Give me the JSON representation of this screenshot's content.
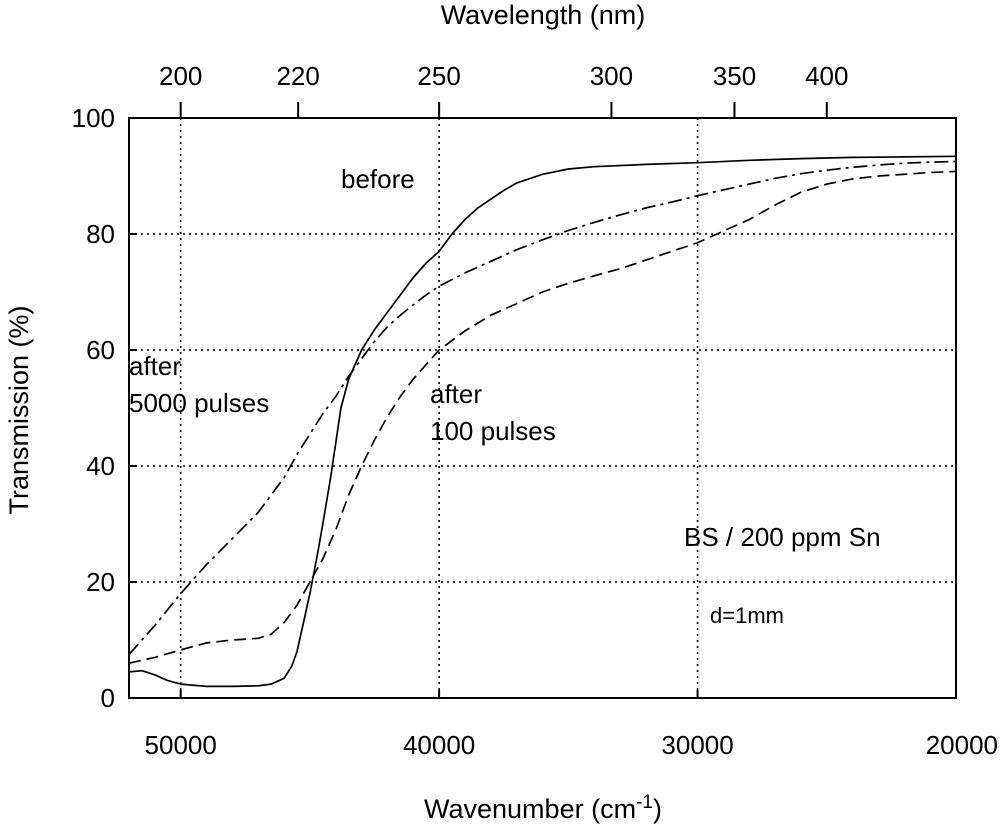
{
  "chart_data": {
    "type": "line",
    "xlabel": "Wavenumber (cm-1)",
    "xlabel_main": "Wavenumber (cm",
    "xlabel_sup": "-1",
    "xlabel_close": ")",
    "ylabel": "Transmission (%)",
    "top_axis_label": "Wavelength (nm)",
    "xlim": [
      52000,
      20000
    ],
    "ylim": [
      0,
      100
    ],
    "x_ticks": [
      50000,
      40000,
      30000,
      20000
    ],
    "x_tick_labels": [
      "50000",
      "40000",
      "30000",
      "20000"
    ],
    "y_ticks": [
      0,
      20,
      40,
      60,
      80,
      100
    ],
    "y_tick_labels": [
      "0",
      "20",
      "40",
      "60",
      "80",
      "100"
    ],
    "top_ticks": [
      200,
      220,
      250,
      300,
      350,
      400
    ],
    "top_tick_labels": [
      "200",
      "220",
      "250",
      "300",
      "350",
      "400"
    ],
    "grid": "dotted at major ticks",
    "annotations": {
      "before": "before",
      "after_5000_line1": "after",
      "after_5000_line2": "5000 pulses",
      "after_100_line1": "after",
      "after_100_line2": "100 pulses",
      "sample": "BS / 200 ppm Sn",
      "thickness": "d=1mm"
    },
    "series": [
      {
        "name": "before",
        "style": "solid",
        "x": [
          52000,
          51500,
          51000,
          50500,
          50000,
          49000,
          48000,
          47000,
          46500,
          46000,
          45700,
          45500,
          45300,
          45000,
          44700,
          44500,
          44200,
          44000,
          43800,
          43500,
          43000,
          42500,
          42000,
          41500,
          41000,
          40500,
          40000,
          39500,
          39000,
          38500,
          38000,
          37500,
          37000,
          36000,
          35000,
          34000,
          32000,
          30000,
          28000,
          26000,
          24000,
          22000,
          20000
        ],
        "y": [
          4.5,
          4.7,
          4.0,
          3.0,
          2.4,
          2.0,
          2.0,
          2.1,
          2.4,
          3.4,
          5.5,
          8.0,
          12.0,
          18.0,
          25.0,
          30.0,
          38.0,
          44.0,
          50.0,
          55.0,
          60.0,
          63.5,
          66.5,
          69.5,
          72.5,
          75.0,
          77.0,
          80.0,
          82.5,
          84.5,
          86.0,
          87.5,
          88.8,
          90.3,
          91.2,
          91.6,
          92.0,
          92.3,
          92.7,
          93.0,
          93.2,
          93.3,
          93.4
        ]
      },
      {
        "name": "after 100 pulses",
        "style": "dashed",
        "x": [
          52000,
          51000,
          50000,
          49000,
          48000,
          47000,
          46500,
          46000,
          45500,
          45000,
          44500,
          44000,
          43500,
          43000,
          42500,
          42000,
          41500,
          41000,
          40500,
          40000,
          39000,
          38000,
          37000,
          36000,
          35000,
          34000,
          33000,
          32000,
          31000,
          30000,
          29000,
          28000,
          27000,
          26000,
          25000,
          24000,
          23000,
          22000,
          21000,
          20000
        ],
        "y": [
          6.0,
          7.0,
          8.3,
          9.5,
          10.0,
          10.3,
          11.0,
          13.0,
          16.0,
          20.0,
          24.0,
          29.0,
          35.0,
          40.0,
          44.5,
          48.5,
          52.0,
          55.0,
          57.5,
          60.0,
          63.3,
          66.0,
          68.0,
          70.0,
          71.5,
          72.8,
          74.0,
          75.5,
          77.0,
          78.5,
          80.5,
          82.5,
          85.0,
          87.2,
          88.6,
          89.5,
          90.0,
          90.3,
          90.6,
          90.8
        ]
      },
      {
        "name": "after 5000 pulses",
        "style": "dash-dot",
        "x": [
          52000,
          51000,
          50000,
          49000,
          48000,
          47000,
          46000,
          45500,
          45000,
          44500,
          44000,
          43500,
          43000,
          42500,
          42000,
          41500,
          41000,
          40500,
          40000,
          39000,
          38000,
          37000,
          36000,
          35000,
          34000,
          33000,
          32000,
          31000,
          30000,
          29000,
          28000,
          27000,
          26000,
          25000,
          24000,
          23000,
          22000,
          21000,
          20000
        ],
        "y": [
          7.5,
          12.5,
          18.0,
          23.0,
          27.5,
          32.0,
          38.0,
          42.0,
          45.5,
          49.0,
          52.0,
          55.5,
          58.5,
          61.5,
          64.0,
          66.0,
          67.8,
          69.5,
          71.0,
          73.3,
          75.3,
          77.3,
          79.0,
          80.6,
          82.0,
          83.3,
          84.5,
          85.5,
          86.6,
          87.6,
          88.6,
          89.6,
          90.4,
          91.0,
          91.5,
          91.9,
          92.2,
          92.4,
          92.5
        ]
      }
    ]
  }
}
